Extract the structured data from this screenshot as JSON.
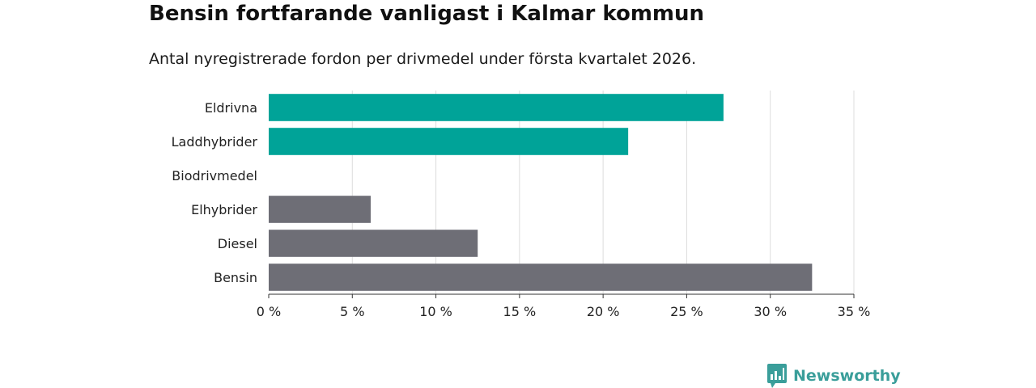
{
  "title": "Bensin fortfarande vanligast i Kalmar kommun",
  "subtitle": "Antal nyregistrerade fordon per drivmedel under första kvartalet 2026.",
  "brand": "Newsworthy",
  "colors": {
    "green": "#00a398",
    "gray": "#6e6e76"
  },
  "chart_data": {
    "type": "bar",
    "orientation": "horizontal",
    "categories": [
      "Eldrivna",
      "Laddhybrider",
      "Biodrivmedel",
      "Elhybrider",
      "Diesel",
      "Bensin"
    ],
    "values": [
      27.2,
      21.5,
      0,
      6.1,
      12.5,
      32.5
    ],
    "bar_colors": [
      "green",
      "green",
      "green",
      "gray",
      "gray",
      "gray"
    ],
    "xlim": [
      0,
      35
    ],
    "xticks": [
      0,
      5,
      10,
      15,
      20,
      25,
      30,
      35
    ],
    "tick_suffix": " %",
    "grid": true
  }
}
